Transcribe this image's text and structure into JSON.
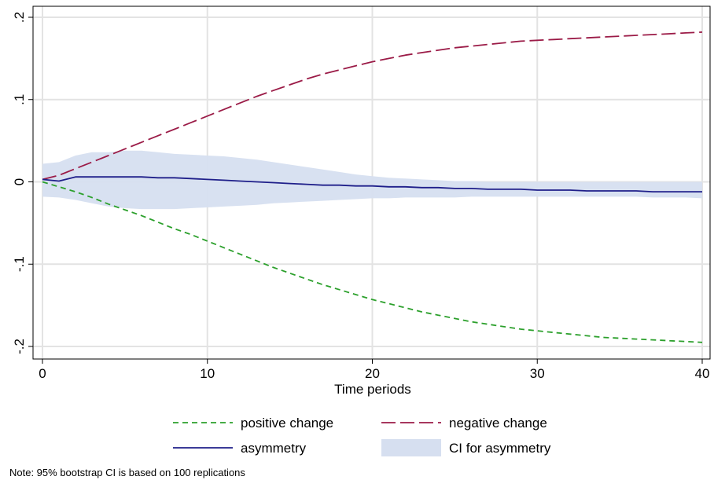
{
  "chart_data": {
    "type": "line",
    "title": "",
    "xlabel": "Time periods",
    "ylabel": "",
    "xlim": [
      0,
      40
    ],
    "ylim": [
      -0.2,
      0.2
    ],
    "x_ticks": [
      0,
      10,
      20,
      30,
      40
    ],
    "x_tick_labels": [
      "0",
      "10",
      "20",
      "30",
      "40"
    ],
    "y_ticks": [
      0.2,
      0.1,
      0,
      -0.1,
      -0.2
    ],
    "y_tick_labels": [
      ".2",
      ".1",
      "0",
      "-.1",
      "-.2"
    ],
    "grid": true,
    "legend_position": "bottom",
    "x": [
      0,
      1,
      2,
      3,
      4,
      5,
      6,
      7,
      8,
      9,
      10,
      11,
      12,
      13,
      14,
      15,
      16,
      17,
      18,
      19,
      20,
      21,
      22,
      23,
      24,
      25,
      26,
      27,
      28,
      29,
      30,
      31,
      32,
      33,
      34,
      35,
      36,
      37,
      38,
      39,
      40
    ],
    "series": [
      {
        "name": "positive change",
        "color": "#2ca02c",
        "style": "dashed",
        "values": [
          0.0,
          -0.006,
          -0.012,
          -0.019,
          -0.027,
          -0.034,
          -0.041,
          -0.049,
          -0.057,
          -0.064,
          -0.072,
          -0.08,
          -0.088,
          -0.096,
          -0.104,
          -0.111,
          -0.118,
          -0.125,
          -0.131,
          -0.137,
          -0.143,
          -0.148,
          -0.153,
          -0.158,
          -0.162,
          -0.166,
          -0.17,
          -0.173,
          -0.176,
          -0.179,
          -0.181,
          -0.183,
          -0.185,
          -0.187,
          -0.189,
          -0.19,
          -0.191,
          -0.192,
          -0.193,
          -0.194,
          -0.195
        ]
      },
      {
        "name": "negative change",
        "color": "#9b1b47",
        "style": "longdash",
        "values": [
          0.003,
          0.008,
          0.016,
          0.024,
          0.032,
          0.04,
          0.048,
          0.056,
          0.064,
          0.072,
          0.08,
          0.088,
          0.096,
          0.104,
          0.111,
          0.118,
          0.125,
          0.131,
          0.136,
          0.141,
          0.146,
          0.15,
          0.154,
          0.157,
          0.16,
          0.163,
          0.165,
          0.167,
          0.169,
          0.171,
          0.172,
          0.173,
          0.174,
          0.175,
          0.176,
          0.177,
          0.178,
          0.179,
          0.18,
          0.181,
          0.182
        ]
      },
      {
        "name": "asymmetry",
        "color": "#1f1f8a",
        "style": "solid",
        "values": [
          0.003,
          0.001,
          0.006,
          0.006,
          0.006,
          0.006,
          0.006,
          0.005,
          0.005,
          0.004,
          0.003,
          0.002,
          0.001,
          0.0,
          -0.001,
          -0.002,
          -0.003,
          -0.004,
          -0.004,
          -0.005,
          -0.005,
          -0.006,
          -0.006,
          -0.007,
          -0.007,
          -0.008,
          -0.008,
          -0.009,
          -0.009,
          -0.009,
          -0.01,
          -0.01,
          -0.01,
          -0.011,
          -0.011,
          -0.011,
          -0.011,
          -0.012,
          -0.012,
          -0.012,
          -0.012
        ]
      }
    ],
    "ci_band": {
      "name": "CI for asymmetry",
      "color": "#d6dff0",
      "upper": [
        0.022,
        0.024,
        0.032,
        0.036,
        0.036,
        0.038,
        0.038,
        0.036,
        0.034,
        0.033,
        0.032,
        0.031,
        0.029,
        0.027,
        0.024,
        0.021,
        0.018,
        0.015,
        0.012,
        0.009,
        0.007,
        0.005,
        0.004,
        0.003,
        0.002,
        0.001,
        0.001,
        0.0,
        0.0,
        0.0,
        0.0,
        0.0,
        0.0,
        0.0,
        0.0,
        0.0,
        0.0,
        0.0,
        0.0,
        0.0,
        0.0
      ],
      "lower": [
        -0.018,
        -0.019,
        -0.022,
        -0.026,
        -0.03,
        -0.032,
        -0.033,
        -0.033,
        -0.033,
        -0.032,
        -0.031,
        -0.03,
        -0.029,
        -0.028,
        -0.026,
        -0.025,
        -0.024,
        -0.023,
        -0.022,
        -0.021,
        -0.02,
        -0.02,
        -0.019,
        -0.019,
        -0.019,
        -0.019,
        -0.018,
        -0.018,
        -0.018,
        -0.018,
        -0.018,
        -0.018,
        -0.018,
        -0.018,
        -0.018,
        -0.018,
        -0.018,
        -0.019,
        -0.019,
        -0.019,
        -0.02
      ]
    },
    "legend": [
      "positive change",
      "negative change",
      "asymmetry",
      "CI for asymmetry"
    ],
    "note": "Note: 95% bootstrap CI is based on 100 replications"
  }
}
